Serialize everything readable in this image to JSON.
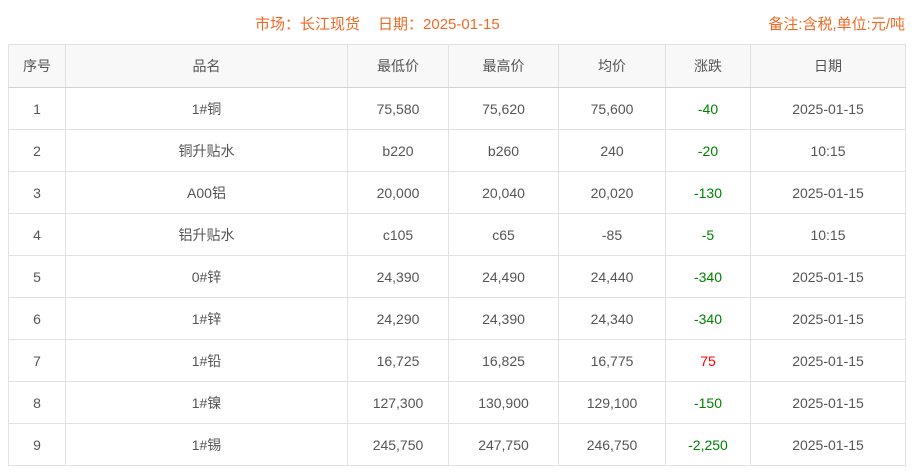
{
  "header": {
    "market": "市场：长江现货",
    "date": "日期：2025-01-15",
    "note": "备注:含税,单位:元/吨"
  },
  "colors": {
    "accent_orange": "#f06a26",
    "change_up_red": "#ff0000",
    "change_down_green": "#008000",
    "table_text_gray": "#555555",
    "border_gray": "#e2e2e2",
    "header_row_bg": "#f8f8f8"
  },
  "table": {
    "headers": [
      "序号",
      "品名",
      "最低价",
      "最高价",
      "均价",
      "涨跌",
      "日期"
    ],
    "rows": [
      {
        "no": "1",
        "name": "1#铜",
        "low": "75,580",
        "high": "75,620",
        "avg": "75,600",
        "change": "-40",
        "date": "2025-01-15"
      },
      {
        "no": "2",
        "name": "铜升贴水",
        "low": "b220",
        "high": "b260",
        "avg": "240",
        "change": "-20",
        "date": "10:15"
      },
      {
        "no": "3",
        "name": "A00铝",
        "low": "20,000",
        "high": "20,040",
        "avg": "20,020",
        "change": "-130",
        "date": "2025-01-15"
      },
      {
        "no": "4",
        "name": "铝升贴水",
        "low": "c105",
        "high": "c65",
        "avg": "-85",
        "change": "-5",
        "date": "10:15"
      },
      {
        "no": "5",
        "name": "0#锌",
        "low": "24,390",
        "high": "24,490",
        "avg": "24,440",
        "change": "-340",
        "date": "2025-01-15"
      },
      {
        "no": "6",
        "name": "1#锌",
        "low": "24,290",
        "high": "24,390",
        "avg": "24,340",
        "change": "-340",
        "date": "2025-01-15"
      },
      {
        "no": "7",
        "name": "1#铅",
        "low": "16,725",
        "high": "16,825",
        "avg": "16,775",
        "change": "75",
        "date": "2025-01-15"
      },
      {
        "no": "8",
        "name": "1#镍",
        "low": "127,300",
        "high": "130,900",
        "avg": "129,100",
        "change": "-150",
        "date": "2025-01-15"
      },
      {
        "no": "9",
        "name": "1#锡",
        "low": "245,750",
        "high": "247,750",
        "avg": "246,750",
        "change": "-2,250",
        "date": "2025-01-15"
      }
    ]
  }
}
